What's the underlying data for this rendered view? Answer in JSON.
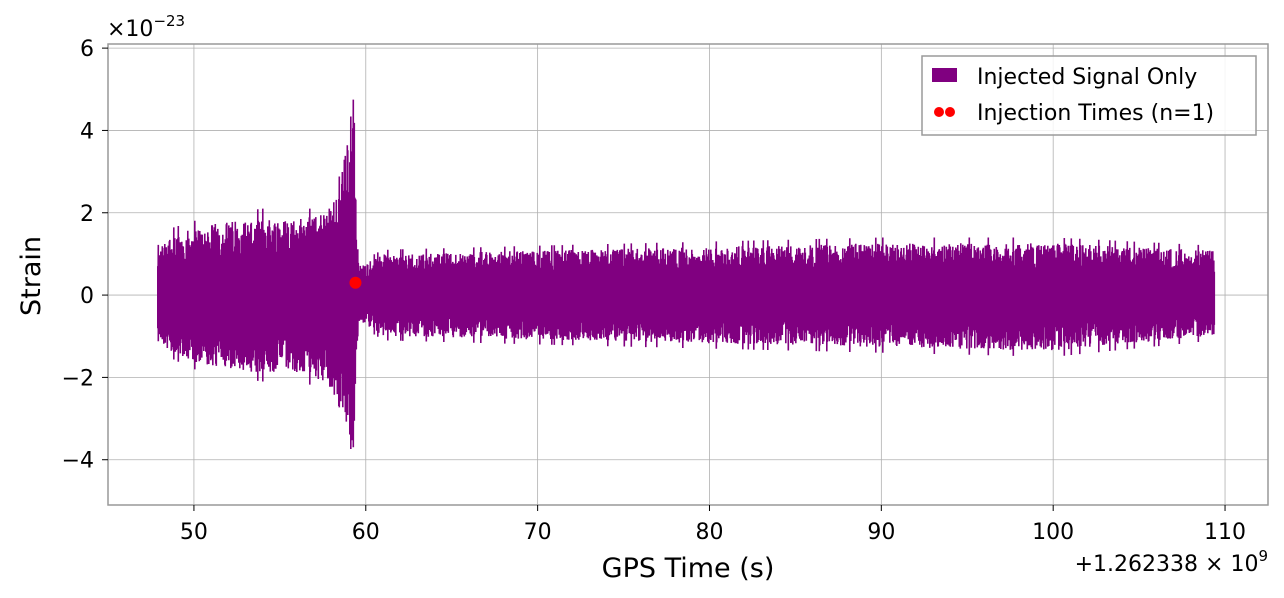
{
  "chart_data": {
    "type": "line",
    "title": "",
    "xlabel": "GPS Time (s)",
    "ylabel": "Strain",
    "x_offset_label": "+1.262338 × 10^9",
    "x_offset_base": "+1.262338",
    "x_offset_exp": "9",
    "y_multiplier_label": "×10^−23",
    "y_multiplier_base": "×10",
    "y_multiplier_exp": "−23",
    "xlim": [
      45,
      112.5
    ],
    "ylim": [
      -5.1,
      6.1
    ],
    "x_ticks": [
      50,
      60,
      70,
      80,
      90,
      100,
      110
    ],
    "x_tick_labels": [
      "50",
      "60",
      "70",
      "80",
      "90",
      "100",
      "110"
    ],
    "y_ticks": [
      -4,
      -2,
      0,
      2,
      4,
      6
    ],
    "y_tick_labels": [
      "−4",
      "−2",
      "0",
      "2",
      "4",
      "6"
    ],
    "grid": true,
    "legend_position": "top-right",
    "series": [
      {
        "name": "Injected Signal Only",
        "kind": "line",
        "color": "#800080",
        "x_start": 47.9,
        "x_end": 109.4,
        "envelope": {
          "description_points_x": [
            47.9,
            48.5,
            50,
            52,
            54,
            56,
            57,
            58,
            58.8,
            59.1,
            59.3,
            59.45,
            59.6,
            61,
            70,
            80,
            90,
            100,
            109.4
          ],
          "upper": [
            1.2,
            1.6,
            1.8,
            2.0,
            2.1,
            2.1,
            2.1,
            2.5,
            3.8,
            4.8,
            5.6,
            2.0,
            0.8,
            1.1,
            1.2,
            1.3,
            1.4,
            1.4,
            1.2
          ],
          "lower": [
            -1.1,
            -1.5,
            -1.8,
            -2.0,
            -2.1,
            -2.1,
            -2.2,
            -2.6,
            -3.5,
            -4.2,
            -4.6,
            -2.0,
            -0.7,
            -1.1,
            -1.2,
            -1.3,
            -1.4,
            -1.5,
            -1.1
          ]
        }
      },
      {
        "name": "Injection Times (n=1)",
        "kind": "scatter",
        "color": "#ff0000",
        "x": [
          59.4
        ],
        "y": [
          0.3
        ]
      }
    ]
  }
}
